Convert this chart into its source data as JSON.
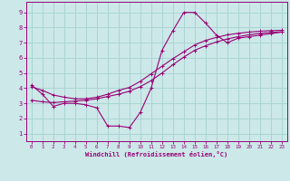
{
  "xlabel": "Windchill (Refroidissement éolien,°C)",
  "bg_color": "#cce8e8",
  "line_color": "#990077",
  "grid_color": "#aad4d4",
  "xlim": [
    -0.5,
    23.5
  ],
  "ylim": [
    0.5,
    9.7
  ],
  "xticks": [
    0,
    1,
    2,
    3,
    4,
    5,
    6,
    7,
    8,
    9,
    10,
    11,
    12,
    13,
    14,
    15,
    16,
    17,
    18,
    19,
    20,
    21,
    22,
    23
  ],
  "yticks": [
    1,
    2,
    3,
    4,
    5,
    6,
    7,
    8,
    9
  ],
  "curve1_x": [
    0,
    1,
    2,
    3,
    4,
    5,
    6,
    7,
    8,
    9,
    10,
    11,
    12,
    13,
    14,
    15,
    16,
    17,
    18,
    19,
    20,
    21,
    22,
    23
  ],
  "curve1_y": [
    4.2,
    3.6,
    2.8,
    3.0,
    3.0,
    2.9,
    2.7,
    1.5,
    1.5,
    1.4,
    2.4,
    4.0,
    6.5,
    7.8,
    9.0,
    9.0,
    8.3,
    7.5,
    7.0,
    7.3,
    7.4,
    7.5,
    7.6,
    7.7
  ],
  "curve2_x": [
    0,
    1,
    2,
    3,
    4,
    5,
    6,
    7,
    8,
    9,
    10,
    11,
    12,
    13,
    14,
    15,
    16,
    17,
    18,
    19,
    20,
    21,
    22,
    23
  ],
  "curve2_y": [
    3.2,
    3.1,
    3.05,
    3.1,
    3.15,
    3.2,
    3.3,
    3.45,
    3.6,
    3.8,
    4.1,
    4.5,
    5.0,
    5.55,
    6.05,
    6.5,
    6.8,
    7.05,
    7.25,
    7.4,
    7.52,
    7.62,
    7.68,
    7.72
  ],
  "curve3_x": [
    0,
    1,
    2,
    3,
    4,
    5,
    6,
    7,
    8,
    9,
    10,
    11,
    12,
    13,
    14,
    15,
    16,
    17,
    18,
    19,
    20,
    21,
    22,
    23
  ],
  "curve3_y": [
    4.1,
    3.85,
    3.55,
    3.4,
    3.3,
    3.3,
    3.4,
    3.6,
    3.85,
    4.05,
    4.45,
    4.95,
    5.45,
    5.95,
    6.4,
    6.85,
    7.15,
    7.35,
    7.52,
    7.62,
    7.7,
    7.76,
    7.8,
    7.82
  ]
}
